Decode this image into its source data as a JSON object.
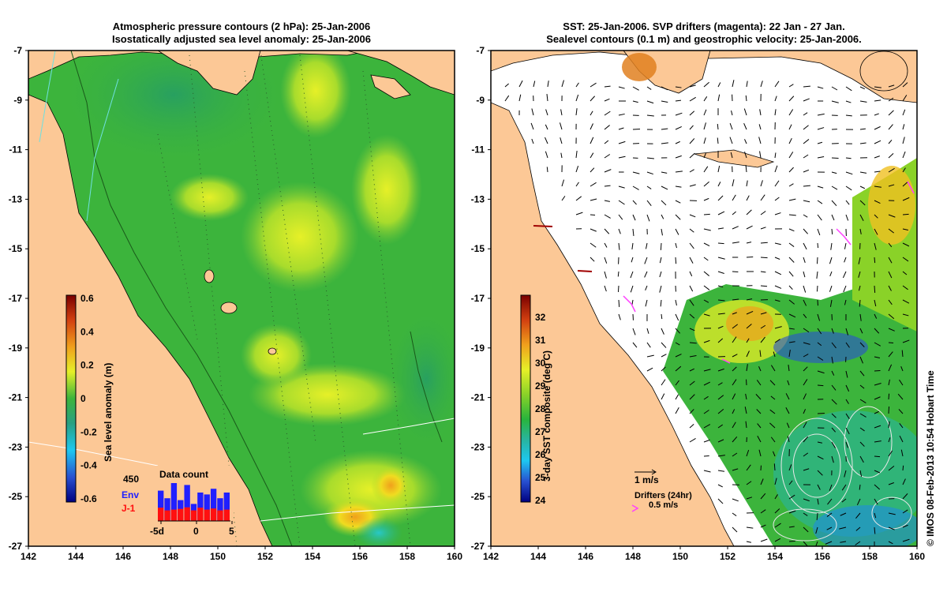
{
  "left_panel": {
    "title_line1": "Atmospheric pressure contours (2 hPa): 25-Jan-2006",
    "title_line2": "Isostatically adjusted sea level anomaly: 25-Jan-2006",
    "colorbar": {
      "label": "Sea level anomaly (m)",
      "ticks": [
        "0.6",
        "0.4",
        "0.2",
        "0",
        "-0.2",
        "-0.4",
        "-0.6"
      ]
    },
    "data_count": {
      "title": "Data count",
      "max_label": "450",
      "env_label": "Env",
      "j1_label": "J-1",
      "x_ticks": [
        "-5d",
        "0",
        "5"
      ],
      "env_color": "#2020ff",
      "j1_color": "#ff1010",
      "env_counts": [
        0.8,
        0.6,
        1.0,
        0.55,
        0.95,
        0.45,
        0.75,
        0.7,
        0.85,
        0.6,
        0.75
      ],
      "j1_counts": [
        0.35,
        0.28,
        0.3,
        0.32,
        0.36,
        0.28,
        0.35,
        0.3,
        0.33,
        0.28,
        0.3
      ]
    }
  },
  "right_panel": {
    "title_line1": "SST: 25-Jan-2006. SVP drifters (magenta): 22 Jan - 27 Jan.",
    "title_line2": "Sealevel contours (0.1 m) and geostrophic velocity: 25-Jan-2006.",
    "colorbar": {
      "label": "3-day SST composite (deg C)",
      "ticks": [
        "32",
        "31",
        "30",
        "29",
        "28",
        "27",
        "26",
        "25",
        "24"
      ]
    },
    "velocity_legend": "1 m/s",
    "drifter_legend_title": "Drifters (24hr)",
    "drifter_legend_speed": "0.5 m/s",
    "drifter_color": "#ff40ff"
  },
  "axes": {
    "x_ticks": [
      "142",
      "144",
      "146",
      "148",
      "150",
      "152",
      "154",
      "156",
      "158",
      "160"
    ],
    "y_ticks": [
      "-7",
      "-9",
      "-11",
      "-13",
      "-15",
      "-17",
      "-19",
      "-21",
      "-23",
      "-25",
      "-27"
    ]
  },
  "credit": "© IMOS 08-Feb-2013 10:54 Hobart Time",
  "colors": {
    "land": "#fcc896",
    "sea_green": "#3cb43c",
    "sea_yellow": "#c8e628"
  }
}
